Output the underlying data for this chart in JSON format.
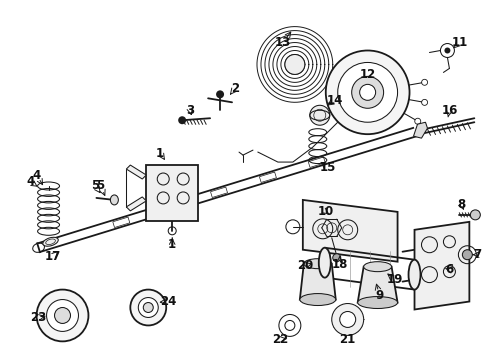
{
  "bg_color": "#ffffff",
  "line_color": "#1a1a1a",
  "fig_width": 4.89,
  "fig_height": 3.6,
  "dpi": 100,
  "label_fontsize": 8.5,
  "lw_main": 1.3,
  "lw_thin": 0.75,
  "lw_thick": 1.8
}
